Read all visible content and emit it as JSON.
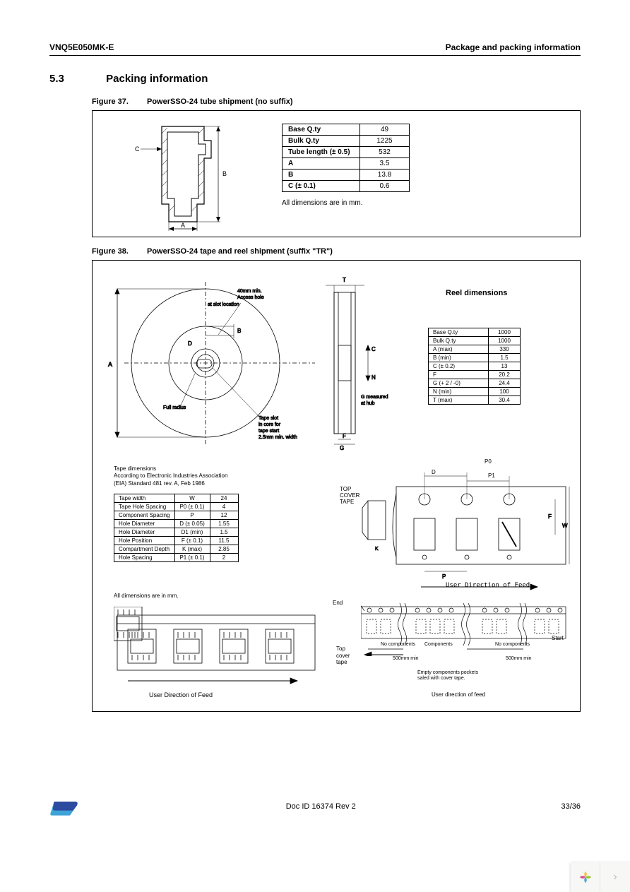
{
  "header": {
    "left": "VNQ5E050MK-E",
    "right": "Package and packing information"
  },
  "section": {
    "num": "5.3",
    "title": "Packing information"
  },
  "fig37": {
    "num": "Figure 37.",
    "title": "PowerSSO-24 tube shipment (no suffix)",
    "table": {
      "rows": [
        [
          "Base Q.ty",
          "49"
        ],
        [
          "Bulk Q.ty",
          "1225"
        ],
        [
          "Tube length (± 0.5)",
          "532"
        ],
        [
          "A",
          "3.5"
        ],
        [
          "B",
          "13.8"
        ],
        [
          "C (± 0.1)",
          "0.6"
        ]
      ]
    },
    "note": "All dimensions are in mm.",
    "labels": {
      "A": "A",
      "B": "B",
      "C": "C"
    },
    "stroke": "#000000",
    "hatch": "#000000"
  },
  "fig38": {
    "num": "Figure 38.",
    "title": "PowerSSO-24 tape and reel shipment (suffix \"TR\")",
    "reel_heading": "Reel dimensions",
    "reel_table": {
      "rows": [
        [
          "Base Q.ty",
          "1000"
        ],
        [
          "Bulk Q.ty",
          "1000"
        ],
        [
          "A (max)",
          "330"
        ],
        [
          "B (min)",
          "1.5"
        ],
        [
          "C (± 0.2)",
          "13"
        ],
        [
          "F",
          "20.2"
        ],
        [
          "G (+ 2 / -0)",
          "24.4"
        ],
        [
          "N (min)",
          "100"
        ],
        [
          "T (max)",
          "30.4"
        ]
      ]
    },
    "reel_annot": {
      "access": "40mm min.\nAccess hole",
      "slot_loc": "at slot location",
      "full_radius": "Full radius",
      "tape_slot": "Tape slot\nin core for\ntape start\n2.5mm min. width",
      "g_meas": "G measured\nat hub"
    },
    "tape_dim_note": "Tape dimensions\nAccording to Electronic Industries Association\n(EIA) Standard 481 rev. A, Feb 1986",
    "tape_table": {
      "rows": [
        [
          "Tape width",
          "W",
          "24"
        ],
        [
          "Tape Hole Spacing",
          "P0 (± 0.1)",
          "4"
        ],
        [
          "Component Spacing",
          "P",
          "12"
        ],
        [
          "Hole Diameter",
          "D (± 0.05)",
          "1.55"
        ],
        [
          "Hole Diameter",
          "D1 (min)",
          "1.5"
        ],
        [
          "Hole Position",
          "F (± 0.1)",
          "11.5"
        ],
        [
          "Compartment Depth",
          "K (max)",
          "2.85"
        ],
        [
          "Hole Spacing",
          "P1 (± 0.1)",
          "2"
        ]
      ]
    },
    "all_mm": "All dimensions are in mm.",
    "labels": {
      "top_cover": "TOP\nCOVER\nTAPE",
      "user_feed": "User Direction of Feed",
      "end": "End",
      "top_cover2": "Top\ncover\ntape",
      "start": "Start",
      "no_comp": "No components",
      "comp": "Components",
      "mm500": "500mm min",
      "empty": "Empty components pockets\nsaled with cover tape.",
      "user_feed2": "User direction of feed",
      "D": "D",
      "P0": "P0",
      "P1": "P1"
    },
    "stroke": "#000000"
  },
  "footer": {
    "doc": "Doc ID 16374 Rev 2",
    "page": "33/36"
  },
  "logo_colors": {
    "top": "#2b4aa0",
    "bottom": "#3ea3d6"
  },
  "corner_icon_colors": [
    "#f4c430",
    "#9fc53a",
    "#4aa7d6",
    "#d94f8e"
  ]
}
